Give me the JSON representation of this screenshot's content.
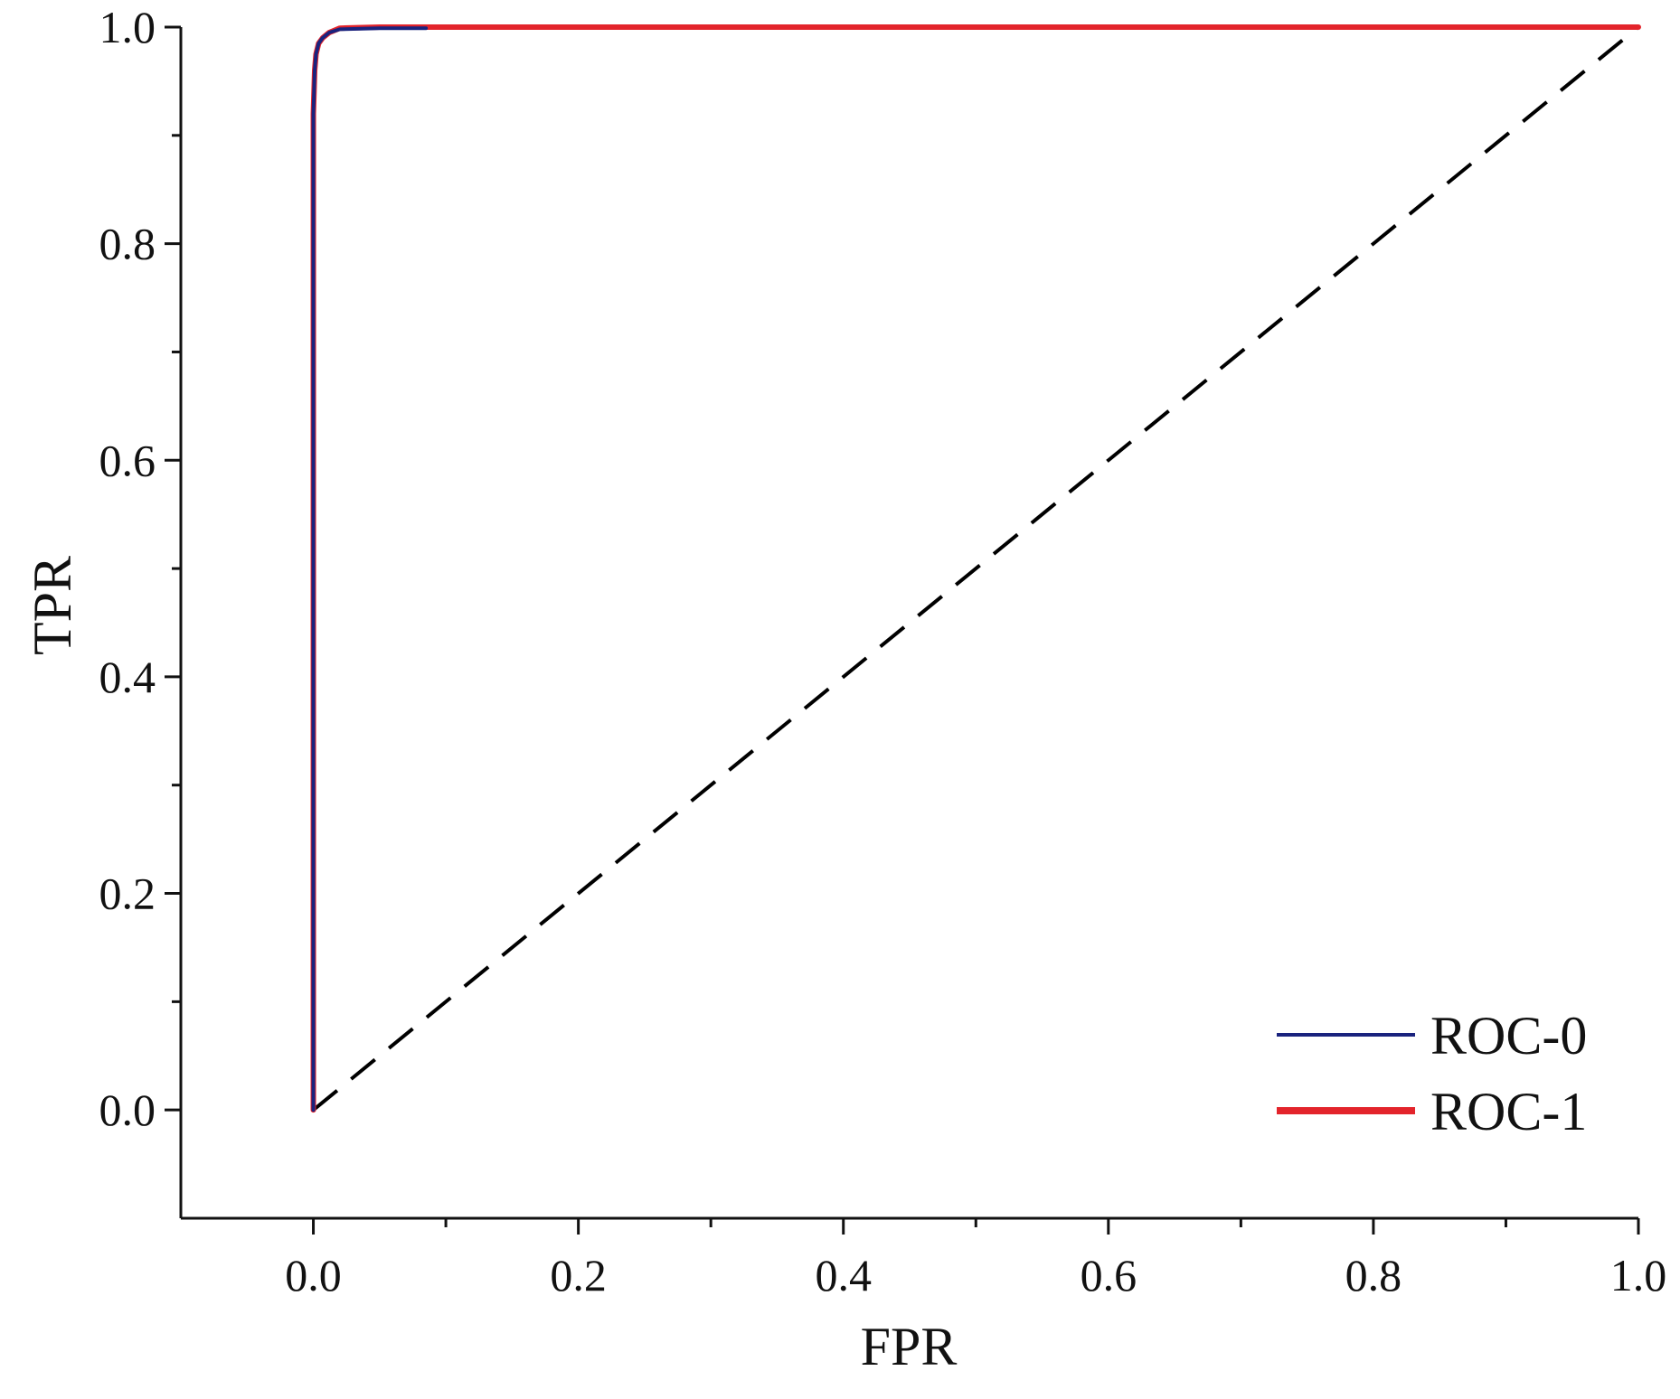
{
  "chart_data": {
    "type": "line",
    "xlabel": "FPR",
    "ylabel": "TPR",
    "xlim": [
      -0.1,
      1.0
    ],
    "ylim": [
      -0.1,
      1.0
    ],
    "x_ticks": [
      0.0,
      0.2,
      0.4,
      0.6,
      0.8,
      1.0
    ],
    "x_tick_labels": [
      "0.0",
      "0.2",
      "0.4",
      "0.6",
      "0.8",
      "1.0"
    ],
    "y_ticks": [
      0.0,
      0.2,
      0.4,
      0.6,
      0.8,
      1.0
    ],
    "y_tick_labels": [
      "0.0",
      "0.2",
      "0.4",
      "0.6",
      "0.8",
      "1.0"
    ],
    "grid": false,
    "legend_position": "bottom-right",
    "series": [
      {
        "name": "ROC-0",
        "color": "#1a237e",
        "x": [
          0.0,
          0.0,
          0.001,
          0.002,
          0.004,
          0.007,
          0.012,
          0.02,
          0.05,
          0.085
        ],
        "y": [
          0.0,
          0.92,
          0.96,
          0.975,
          0.985,
          0.99,
          0.995,
          0.998,
          0.999,
          0.999
        ]
      },
      {
        "name": "ROC-1",
        "color": "#e3242b",
        "x": [
          0.0,
          0.0,
          0.001,
          0.002,
          0.004,
          0.007,
          0.012,
          0.02,
          0.05,
          1.0
        ],
        "y": [
          0.0,
          0.92,
          0.96,
          0.975,
          0.985,
          0.99,
          0.995,
          0.999,
          1.0,
          1.0
        ]
      }
    ],
    "reference_line": {
      "x": [
        0.0,
        1.0
      ],
      "y": [
        0.0,
        1.0
      ],
      "color": "#000000",
      "style": "dashed"
    }
  }
}
